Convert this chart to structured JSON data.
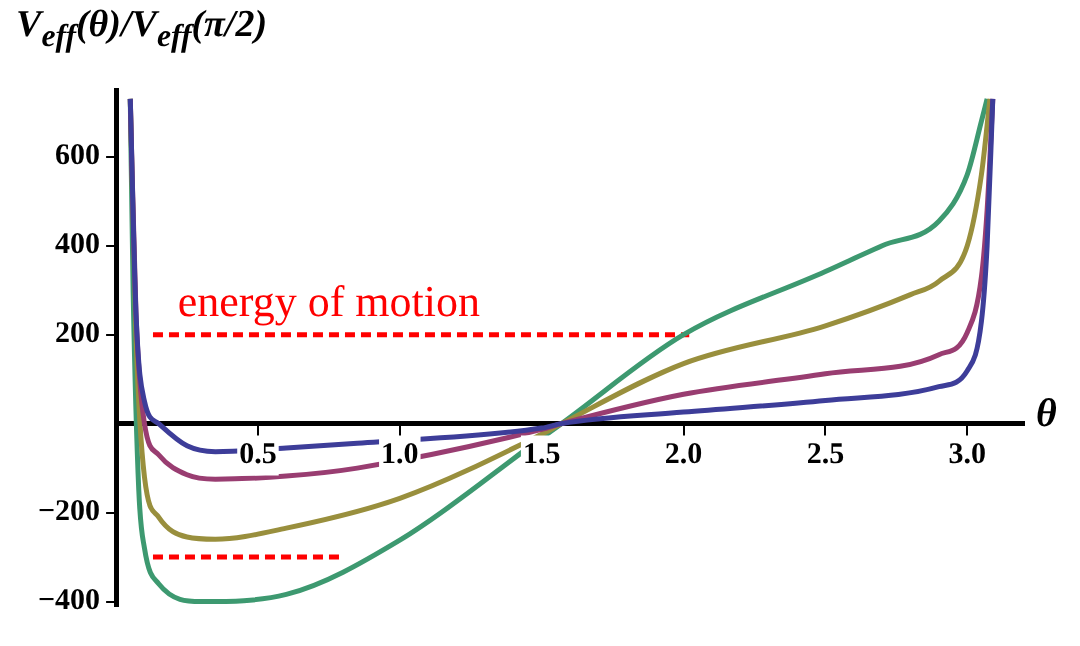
{
  "chart_data": {
    "type": "line",
    "ylabel": "V$_{eff}$(θ)/V$_{eff}$(π/2)",
    "xlabel": "θ",
    "xlim": [
      0,
      3.2
    ],
    "ylim": [
      -410,
      750
    ],
    "xticks": [
      0.5,
      {
        "value": 1,
        "label": "1.0"
      },
      1.5,
      {
        "value": 2,
        "label": "2.0"
      },
      2.5,
      {
        "value": 3,
        "label": "3.0"
      }
    ],
    "yticks": [
      -400,
      -200,
      200,
      400,
      600
    ],
    "grid": false,
    "legend": false,
    "series": [
      {
        "color": "#3d3d99",
        "x": [
          0.05,
          0.07,
          0.1,
          0.15,
          0.25,
          0.35,
          0.6,
          0.85,
          1.5,
          1.57,
          2.0,
          2.5,
          2.9,
          3.0,
          3.05,
          3.07,
          3.09
        ],
        "values": [
          730,
          250,
          50,
          0,
          -50,
          -63,
          -55,
          -44,
          -10,
          0,
          26,
          52,
          83,
          119,
          230,
          400,
          730
        ]
      },
      {
        "color": "#993d71",
        "x": [
          0.05,
          0.07,
          0.1,
          0.15,
          0.25,
          0.35,
          0.6,
          0.85,
          1.5,
          1.57,
          2.0,
          2.5,
          2.9,
          3.0,
          3.05,
          3.07,
          3.09
        ],
        "values": [
          730,
          250,
          0,
          -70,
          -115,
          -125,
          -118,
          -100,
          -13,
          0,
          66,
          112,
          155,
          205,
          330,
          480,
          730
        ]
      },
      {
        "color": "#998f3d",
        "x": [
          0.05,
          0.07,
          0.1,
          0.15,
          0.25,
          0.35,
          0.6,
          1.0,
          1.5,
          1.57,
          2.0,
          2.5,
          2.8,
          2.9,
          3.0,
          3.05,
          3.08
        ],
        "values": [
          730,
          200,
          -120,
          -210,
          -255,
          -260,
          -235,
          -168,
          -24,
          0,
          135,
          220,
          290,
          320,
          400,
          560,
          730
        ]
      },
      {
        "color": "#3d9970",
        "x": [
          0.05,
          0.06,
          0.08,
          0.1,
          0.15,
          0.3,
          0.6,
          1.0,
          1.5,
          1.57,
          2.0,
          2.5,
          2.7,
          2.9,
          3.0,
          3.05,
          3.07
        ],
        "values": [
          730,
          300,
          -150,
          -280,
          -360,
          -400,
          -384,
          -262,
          -32,
          0,
          200,
          342,
          400,
          455,
          560,
          680,
          730
        ]
      },
      {
        "color": "#ff0000",
        "line_style": "dashed",
        "x": [
          0.13,
          2.02
        ],
        "values": [
          200,
          200
        ]
      },
      {
        "color": "#ff0000",
        "line_style": "dashed",
        "x": [
          0.13,
          0.8
        ],
        "values": [
          -300,
          -300
        ]
      }
    ],
    "annotations": [
      {
        "text": "energy of motion",
        "x": 0.75,
        "y": 200
      }
    ]
  }
}
